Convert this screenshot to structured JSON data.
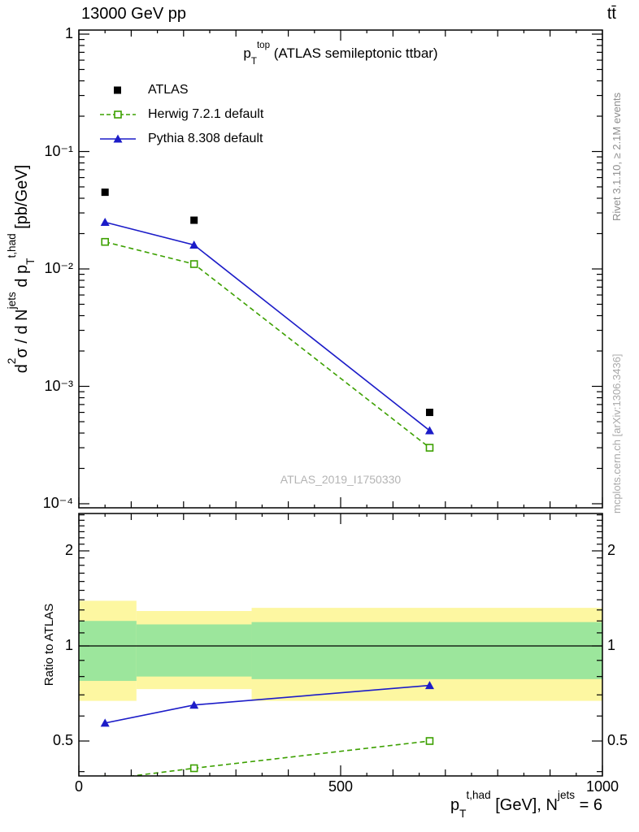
{
  "header": {
    "left_label": "13000 GeV pp",
    "right_label": "tt̄"
  },
  "main_panel": {
    "title_rich": [
      {
        "t": "p"
      },
      {
        "t": "T",
        "s": "sub"
      },
      {
        "t": "top",
        "s": "sup"
      },
      {
        "t": " (ATLAS semileptonic ttbar)"
      }
    ],
    "ylabel_rich": [
      {
        "t": "d"
      },
      {
        "t": "2",
        "s": "sup"
      },
      {
        "t": "σ / d N"
      },
      {
        "t": "jets",
        "s": "sup"
      },
      {
        "t": " d p"
      },
      {
        "t": "T",
        "s": "sub"
      },
      {
        "t": "t,had",
        "s": "sup"
      },
      {
        "t": " [pb/GeV]"
      }
    ],
    "watermark": "ATLAS_2019_I1750330",
    "ytick_labels": [
      {
        "v": 1,
        "label": "1"
      },
      {
        "v": 0.1,
        "label": "10⁻¹"
      },
      {
        "v": 0.01,
        "label": "10⁻²"
      },
      {
        "v": 0.001,
        "label": "10⁻³"
      },
      {
        "v": 0.0001,
        "label": "10⁻⁴"
      }
    ]
  },
  "ratio_panel": {
    "ylabel": "Ratio to ATLAS",
    "ytick_labels": [
      {
        "v": 2,
        "label": "2"
      },
      {
        "v": 1,
        "label": "1"
      },
      {
        "v": 0.5,
        "label": "0.5"
      }
    ]
  },
  "x_axis": {
    "label_rich": [
      {
        "t": "p"
      },
      {
        "t": "T",
        "s": "sub"
      },
      {
        "t": "t,had",
        "s": "sup"
      },
      {
        "t": " [GeV], N"
      },
      {
        "t": "jets",
        "s": "sup"
      },
      {
        "t": " = 6"
      }
    ],
    "tick_labels": [
      {
        "v": 0,
        "label": "0"
      },
      {
        "v": 500,
        "label": "500"
      },
      {
        "v": 1000,
        "label": "1000"
      }
    ]
  },
  "legend": {
    "items": [
      {
        "label": "ATLAS"
      },
      {
        "label": "Herwig 7.2.1 default"
      },
      {
        "label": "Pythia 8.308 default"
      }
    ]
  },
  "side_notes": {
    "top": "Rivet 3.1.10, ≥ 2.1M events",
    "bottom": "mcplots.cern.ch [arXiv:1306.3436]"
  },
  "colors": {
    "atlas": "#000000",
    "herwig": "#3ca000",
    "pythia": "#1c1cc8",
    "band_yellow": "#fdf7a1",
    "band_green": "#9ce69c",
    "gray_text": "#8e8e8e",
    "gray_text_light": "#a9a9a9",
    "watermark": "#b4b4b4"
  },
  "chart_data": [
    {
      "type": "scatter",
      "title": "pT^top (ATLAS semileptonic ttbar)",
      "xlabel": "pT^{t,had} [GeV], N^jets = 6",
      "ylabel": "d2sigma / dN^jets dpT^{t,had} [pb/GeV]",
      "xlim": [
        0,
        1000
      ],
      "ylim": [
        0.0001,
        1
      ],
      "yscale": "log",
      "grid": false,
      "legend_position": "upper-left-inside",
      "series": [
        {
          "name": "ATLAS",
          "color_key": "atlas",
          "marker": "square",
          "line": "none",
          "x": [
            50,
            220,
            670
          ],
          "y": [
            0.045,
            0.026,
            0.0006
          ]
        },
        {
          "name": "Herwig 7.2.1 default",
          "color_key": "herwig",
          "marker": "open-square",
          "line": "dashed",
          "x": [
            50,
            220,
            670
          ],
          "y": [
            0.017,
            0.011,
            0.0003
          ]
        },
        {
          "name": "Pythia 8.308 default",
          "color_key": "pythia",
          "marker": "triangle",
          "line": "solid",
          "x": [
            50,
            220,
            670
          ],
          "y": [
            0.025,
            0.016,
            0.00042
          ]
        }
      ]
    },
    {
      "type": "line",
      "title": "Ratio to ATLAS",
      "xlim": [
        0,
        1000
      ],
      "ylim": [
        0.39,
        2.63
      ],
      "yscale": "log",
      "yticks": [
        0.5,
        1,
        2
      ],
      "ref_line": 1,
      "bands": [
        {
          "color_key": "band_yellow",
          "segments": [
            {
              "x0": 0,
              "x1": 110,
              "lo": 0.67,
              "hi": 1.39
            },
            {
              "x0": 110,
              "x1": 330,
              "lo": 0.73,
              "hi": 1.29
            },
            {
              "x0": 330,
              "x1": 1000,
              "lo": 0.67,
              "hi": 1.32
            }
          ]
        },
        {
          "color_key": "band_green",
          "segments": [
            {
              "x0": 0,
              "x1": 110,
              "lo": 0.775,
              "hi": 1.2
            },
            {
              "x0": 110,
              "x1": 330,
              "lo": 0.8,
              "hi": 1.17
            },
            {
              "x0": 330,
              "x1": 1000,
              "lo": 0.785,
              "hi": 1.19
            }
          ]
        }
      ],
      "series": [
        {
          "name": "Herwig 7.2.1 default",
          "color_key": "herwig",
          "marker": "open-square",
          "line": "dashed",
          "x": [
            50,
            220,
            670
          ],
          "y": [
            0.378,
            0.41,
            0.5
          ]
        },
        {
          "name": "Pythia 8.308 default",
          "color_key": "pythia",
          "marker": "triangle",
          "line": "solid",
          "x": [
            50,
            220,
            670
          ],
          "y": [
            0.57,
            0.65,
            0.75
          ]
        }
      ]
    }
  ]
}
